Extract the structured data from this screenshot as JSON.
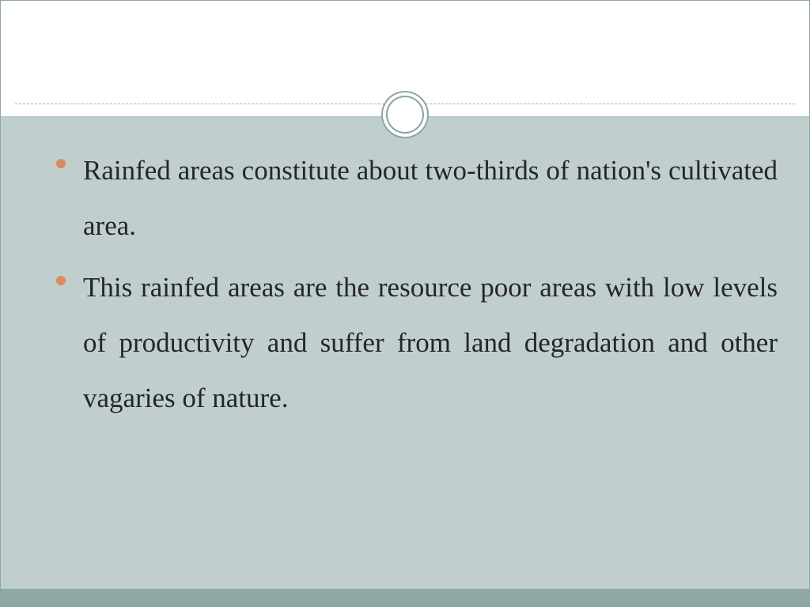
{
  "slide": {
    "bullets": [
      {
        "text": "Rainfed areas constitute about two-thirds of nation's cultivated area."
      },
      {
        "text": "This rainfed areas are the resource poor areas with low levels of productivity and suffer from land degradation and other vagaries of nature."
      }
    ]
  },
  "style": {
    "bullet_color": "#d88b5e",
    "text_color": "#262626",
    "content_bg": "#c0cfce",
    "header_bg": "#ffffff",
    "ring_border": "#8aa5a3",
    "dash_line_color": "#98b0b0",
    "solid_line_color": "#b9c9c8",
    "bottom_bar_color": "#8da8a5",
    "font_family": "Georgia",
    "font_size_pt": 26,
    "line_height": 2.0
  }
}
